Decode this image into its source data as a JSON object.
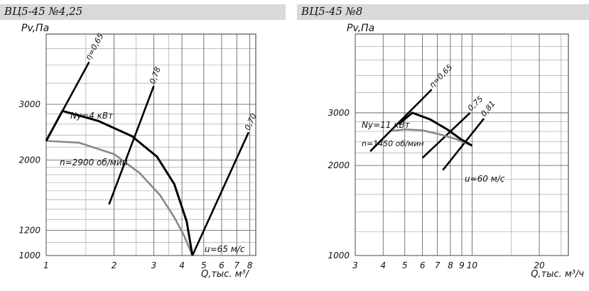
{
  "headers": {
    "left": "ВЦ5-45 №4,25",
    "right": "ВЦ5-45 №8"
  },
  "chart_data": [
    {
      "type": "line",
      "title": "ВЦ5-45 №4,25",
      "ylabel": "Pv,Па",
      "xlabel": "Q,тыс. м³/",
      "x_scale": "log",
      "y_scale": "log",
      "xlim": [
        1,
        8.5
      ],
      "ylim": [
        1000,
        5000
      ],
      "x_ticks": [
        1,
        2,
        3,
        4,
        5,
        6,
        7,
        8
      ],
      "x_tick_labels": [
        "1",
        "2",
        "3",
        "4",
        "5",
        "6",
        "7",
        "8"
      ],
      "y_ticks": [
        1000,
        1200,
        2000,
        3000
      ],
      "y_tick_labels": [
        "1000",
        "1200",
        "2000",
        "3000"
      ],
      "grid": true,
      "series": [
        {
          "name": "n=2900 об/мин",
          "color": "#888888",
          "points": [
            [
              1.0,
              2300
            ],
            [
              1.4,
              2270
            ],
            [
              2.0,
              2090
            ],
            [
              2.6,
              1820
            ],
            [
              3.2,
              1550
            ],
            [
              3.7,
              1320
            ],
            [
              4.1,
              1150
            ],
            [
              4.45,
              1000
            ]
          ]
        },
        {
          "name": "Ny=4 кВт",
          "color": "#000000",
          "points": [
            [
              1.0,
              2300
            ],
            [
              1.18,
              2860
            ],
            [
              1.7,
              2660
            ],
            [
              2.4,
              2380
            ],
            [
              3.1,
              2050
            ],
            [
              3.7,
              1680
            ],
            [
              4.2,
              1280
            ],
            [
              4.45,
              1000
            ]
          ]
        }
      ],
      "efficiency_lines": [
        {
          "label": "η=0,65",
          "points": [
            [
              1.0,
              2300
            ],
            [
              1.55,
              4080
            ]
          ]
        },
        {
          "label": "0,78",
          "points": [
            [
              1.9,
              1450
            ],
            [
              3.0,
              3430
            ]
          ]
        },
        {
          "label": "0,70",
          "points": [
            [
              4.45,
              1000
            ],
            [
              7.9,
              2450
            ]
          ]
        }
      ],
      "annotations": [
        "u=65 м/с"
      ]
    },
    {
      "type": "line",
      "title": "ВЦ5-45 №8",
      "ylabel": "Pv,Па",
      "xlabel": "Q,тыс. м³/ч",
      "x_scale": "log",
      "y_scale": "log",
      "xlim": [
        3,
        27
      ],
      "ylim": [
        1000,
        5500
      ],
      "x_ticks": [
        3,
        4,
        5,
        6,
        7,
        8,
        9,
        10,
        20
      ],
      "x_tick_labels": [
        "3",
        "4",
        "5",
        "6",
        "7",
        "8",
        "9",
        "10",
        "20"
      ],
      "y_ticks": [
        1000,
        2000,
        3000
      ],
      "y_tick_labels": [
        "1000",
        "2000",
        "3000"
      ],
      "grid": true,
      "series": [
        {
          "name": "n=1450 об/мин",
          "color": "#888888",
          "points": [
            [
              4.4,
              2610
            ],
            [
              5.0,
              2640
            ],
            [
              6.0,
              2620
            ],
            [
              7.2,
              2540
            ],
            [
              8.5,
              2450
            ],
            [
              10.0,
              2330
            ]
          ]
        },
        {
          "name": "Ny=11 кВт",
          "color": "#000000",
          "points": [
            [
              4.7,
              2750
            ],
            [
              5.4,
              3000
            ],
            [
              6.5,
              2850
            ],
            [
              7.8,
              2630
            ],
            [
              8.9,
              2450
            ],
            [
              10.0,
              2330
            ]
          ]
        }
      ],
      "efficiency_lines": [
        {
          "label": "η=0,65",
          "points": [
            [
              3.5,
              2230
            ],
            [
              6.6,
              3590
            ]
          ]
        },
        {
          "label": "0,75",
          "points": [
            [
              6.0,
              2120
            ],
            [
              9.8,
              3000
            ]
          ]
        },
        {
          "label": "0,81",
          "points": [
            [
              7.4,
              1930
            ],
            [
              11.3,
              2870
            ]
          ]
        }
      ],
      "annotations": [
        "u=60 м/с"
      ]
    }
  ]
}
